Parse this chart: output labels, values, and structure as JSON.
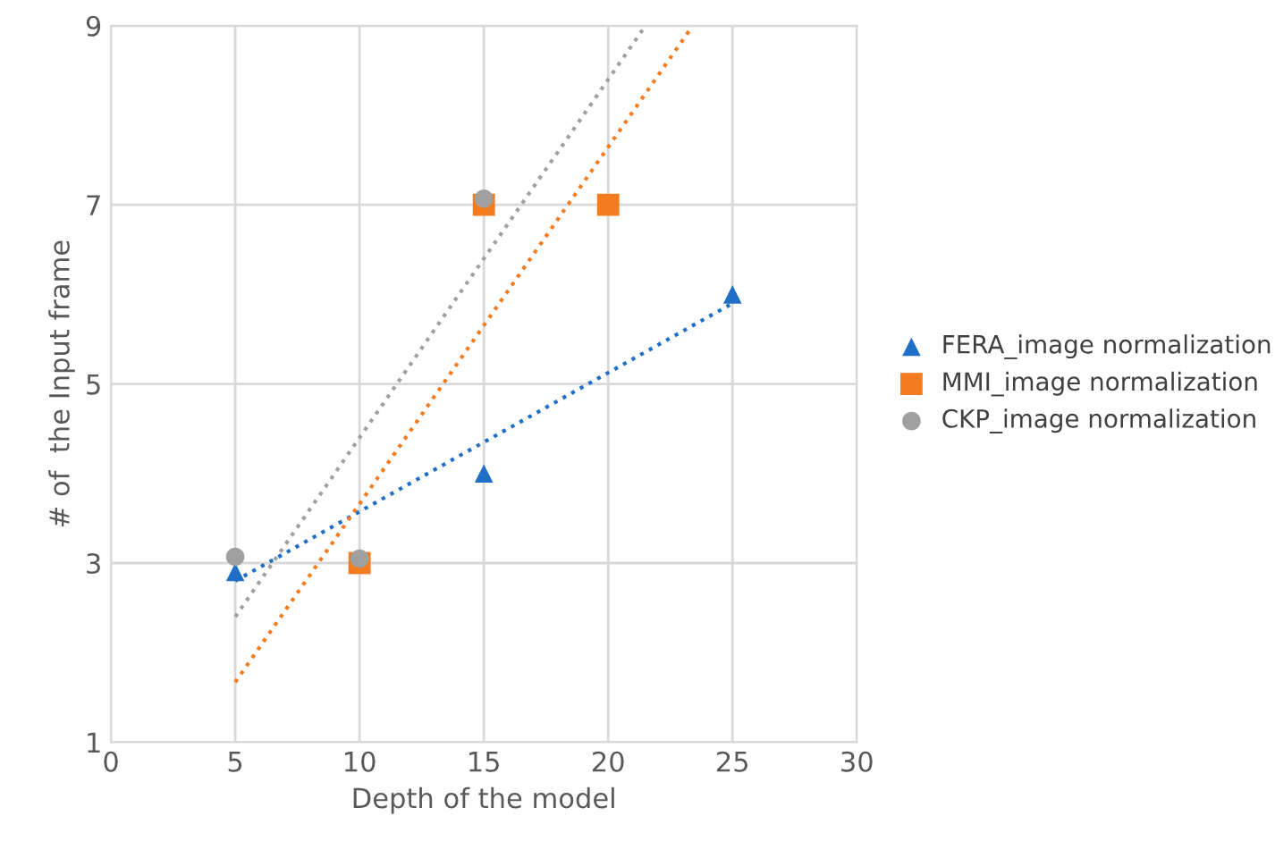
{
  "chart_data": {
    "type": "scatter",
    "xlabel": "Depth of the model",
    "ylabel": "# of  the Input frame",
    "xlim": [
      0,
      30
    ],
    "xticks": [
      0,
      5,
      10,
      15,
      20,
      25,
      30
    ],
    "ylim": [
      1,
      9
    ],
    "yticks": [
      1,
      3,
      5,
      7,
      9
    ],
    "grid": true,
    "legend": "right",
    "series": [
      {
        "name": "FERA_image normalization",
        "color": "#1f6fc6",
        "marker": "triangle",
        "x": [
          5,
          15,
          25
        ],
        "values": [
          2.9,
          4.0,
          6.0
        ]
      },
      {
        "name": "MMI_image normalization",
        "color": "#f47c20",
        "marker": "square",
        "x": [
          10,
          15,
          20
        ],
        "values": [
          3.0,
          7.0,
          7.0
        ]
      },
      {
        "name": "CKP_image normalization",
        "color": "#a0a0a0",
        "marker": "circle",
        "x": [
          5,
          10,
          15
        ],
        "values": [
          3.07,
          3.05,
          7.07
        ]
      },
      {
        "type": "line",
        "color": "#1f6fc6",
        "marker": "none",
        "line_style": "dotted",
        "x": [
          5,
          25
        ],
        "values": [
          2.8,
          5.9
        ]
      },
      {
        "type": "line",
        "color": "#f47c20",
        "marker": "none",
        "line_style": "dotted",
        "x": [
          5,
          23.4
        ],
        "values": [
          1.67,
          9.0
        ]
      },
      {
        "type": "line",
        "color": "#a0a0a0",
        "marker": "none",
        "line_style": "dotted",
        "x": [
          5,
          21.5
        ],
        "values": [
          2.4,
          9.0
        ]
      }
    ]
  }
}
